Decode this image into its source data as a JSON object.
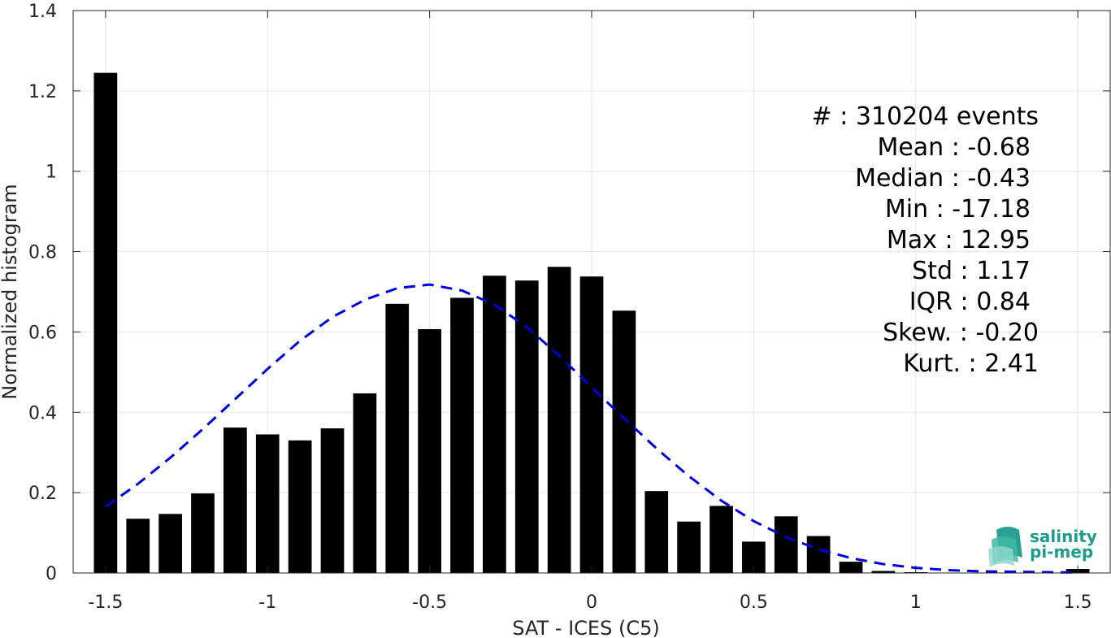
{
  "chart_data": {
    "type": "bar",
    "xlabel": "SAT - ICES (C5)",
    "ylabel": "Normalized histogram",
    "xlim": [
      -1.6,
      1.6
    ],
    "ylim": [
      0,
      1.4
    ],
    "xticks": [
      -1.5,
      -1,
      -0.5,
      0,
      0.5,
      1,
      1.5
    ],
    "xtick_labels": [
      "-1.5",
      "-1",
      "-0.5",
      "0",
      "0.5",
      "1",
      "1.5"
    ],
    "yticks": [
      0,
      0.2,
      0.4,
      0.6,
      0.8,
      1,
      1.2,
      1.4
    ],
    "ytick_labels": [
      "0",
      "0.2",
      "0.4",
      "0.6",
      "0.8",
      "1",
      "1.2",
      "1.4"
    ],
    "grid": true,
    "bar_color": "#000000",
    "bars": {
      "x": [
        -1.5,
        -1.4,
        -1.3,
        -1.2,
        -1.1,
        -1.0,
        -0.9,
        -0.8,
        -0.7,
        -0.6,
        -0.5,
        -0.4,
        -0.3,
        -0.2,
        -0.1,
        0.0,
        0.1,
        0.2,
        0.3,
        0.4,
        0.5,
        0.6,
        0.7,
        0.8,
        0.9,
        1.0,
        1.1,
        1.2,
        1.3,
        1.4,
        1.5
      ],
      "values": [
        1.245,
        0.135,
        0.147,
        0.198,
        0.362,
        0.345,
        0.33,
        0.36,
        0.447,
        0.67,
        0.607,
        0.685,
        0.74,
        0.728,
        0.762,
        0.738,
        0.653,
        0.204,
        0.128,
        0.167,
        0.078,
        0.141,
        0.092,
        0.028,
        0.005,
        0.002,
        0.001,
        0.001,
        0.001,
        0.001,
        0.01
      ],
      "bar_width": 0.072
    },
    "fit_curve": {
      "style": "dashed",
      "color": "#0000dd",
      "x": [
        -1.5,
        -1.4,
        -1.3,
        -1.2,
        -1.1,
        -1.0,
        -0.9,
        -0.8,
        -0.7,
        -0.6,
        -0.5,
        -0.4,
        -0.3,
        -0.2,
        -0.1,
        0.0,
        0.1,
        0.2,
        0.3,
        0.4,
        0.5,
        0.6,
        0.7,
        0.8,
        0.9,
        1.0,
        1.1,
        1.2,
        1.3,
        1.4,
        1.5
      ],
      "y": [
        0.165,
        0.222,
        0.287,
        0.358,
        0.433,
        0.508,
        0.578,
        0.637,
        0.68,
        0.709,
        0.718,
        0.703,
        0.668,
        0.612,
        0.541,
        0.462,
        0.385,
        0.31,
        0.241,
        0.18,
        0.129,
        0.089,
        0.059,
        0.037,
        0.022,
        0.013,
        0.007,
        0.004,
        0.003,
        0.002,
        0.001
      ]
    },
    "stats_lines": [
      "#  : 310204 events",
      "Mean : -0.68",
      "Median : -0.43",
      "Min : -17.18",
      "Max : 12.95",
      "Std : 1.17",
      "IQR : 0.84",
      "Skew. : -0.20",
      "Kurt. : 2.41"
    ]
  },
  "logo": {
    "line1": "salinity",
    "line2": "pi-mep",
    "color": "#1d9c8c"
  }
}
